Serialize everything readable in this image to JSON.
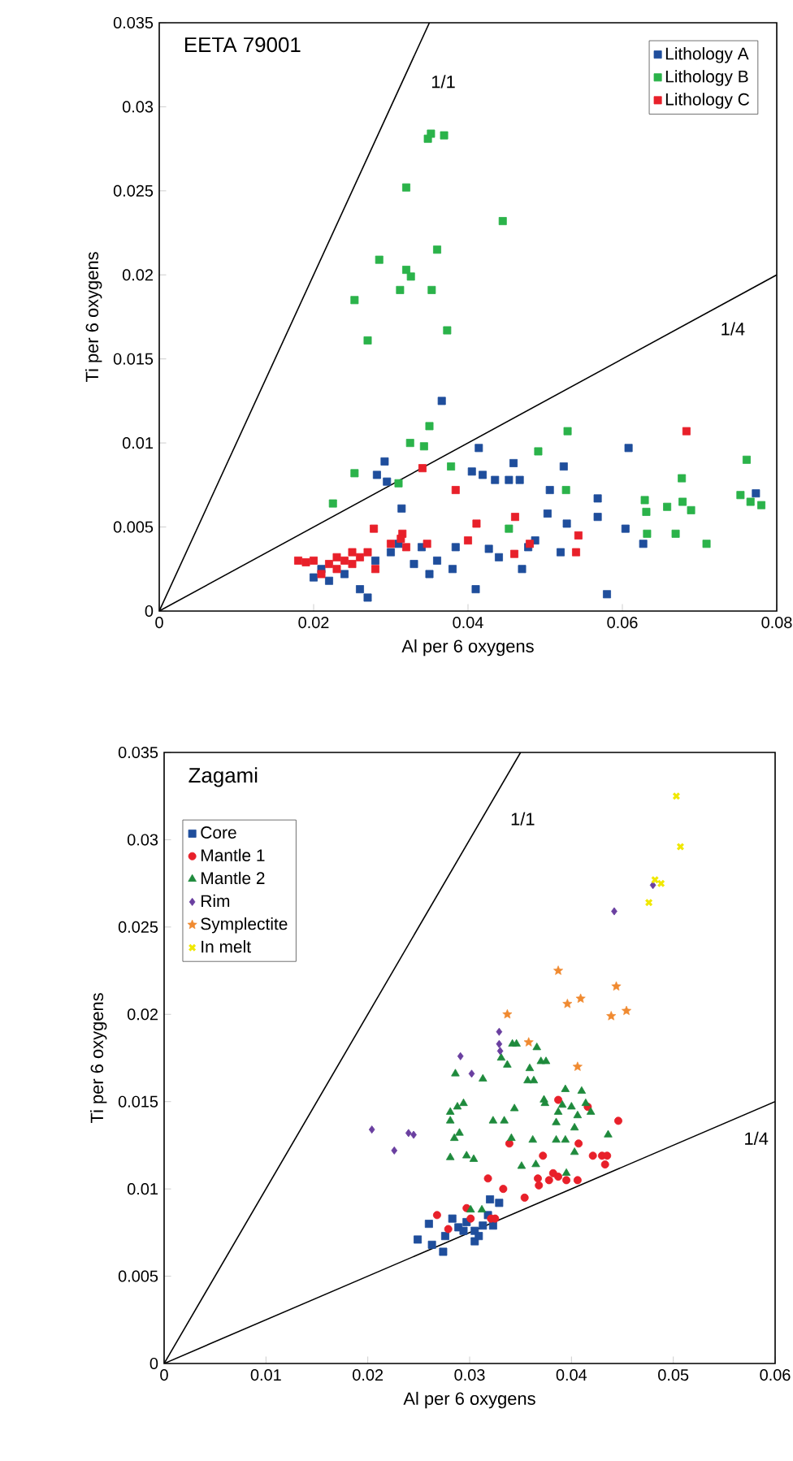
{
  "chart_data": [
    {
      "type": "scatter",
      "title": "EETA 79001",
      "xlabel": "Al per 6 oxygens",
      "ylabel": "Ti per 6 oxygens",
      "xlim": [
        0,
        0.08
      ],
      "ylim": [
        0,
        0.035
      ],
      "xticks": [
        0,
        0.02,
        0.04,
        0.06,
        0.08
      ],
      "yticks": [
        0,
        0.005,
        0.01,
        0.015,
        0.02,
        0.025,
        0.03,
        0.035
      ],
      "legend": "top right",
      "grid": false,
      "annotations": [
        {
          "text": "1/1",
          "x": 0.0315,
          "y": 0.0315
        },
        {
          "text": "1/4",
          "x": 0.0728,
          "y": 0.0182
        }
      ],
      "series": [
        {
          "name": "Lithology A",
          "color": "#1f4e9c",
          "marker": "square",
          "x": [
            0.0366,
            0.0414,
            0.0292,
            0.0282,
            0.0295,
            0.0405,
            0.0419,
            0.0435,
            0.0453,
            0.0467,
            0.0459,
            0.0524,
            0.0506,
            0.0608,
            0.0568,
            0.0568,
            0.0503,
            0.0528,
            0.0604,
            0.0314,
            0.0487,
            0.0773,
            0.0627,
            0.0384,
            0.0427,
            0.0478,
            0.02,
            0.021,
            0.022,
            0.024,
            0.026,
            0.027,
            0.028,
            0.03,
            0.033,
            0.035,
            0.036,
            0.038,
            0.041,
            0.044,
            0.047,
            0.058,
            0.052,
            0.031,
            0.034
          ],
          "values": [
            0.0125,
            0.0097,
            0.0089,
            0.0081,
            0.0077,
            0.0083,
            0.0081,
            0.0078,
            0.0078,
            0.0078,
            0.0088,
            0.0086,
            0.0072,
            0.0097,
            0.0067,
            0.0056,
            0.0058,
            0.0052,
            0.0049,
            0.0061,
            0.0042,
            0.007,
            0.004,
            0.0038,
            0.0037,
            0.0038,
            0.002,
            0.0025,
            0.0018,
            0.0022,
            0.0013,
            0.0008,
            0.003,
            0.0035,
            0.0028,
            0.0022,
            0.003,
            0.0025,
            0.0013,
            0.0032,
            0.0025,
            0.001,
            0.0035,
            0.004,
            0.0038
          ]
        },
        {
          "name": "Lithology B",
          "color": "#2bb34a",
          "marker": "square",
          "x": [
            0.0348,
            0.0352,
            0.0369,
            0.032,
            0.0445,
            0.0285,
            0.032,
            0.0326,
            0.0312,
            0.036,
            0.0353,
            0.0253,
            0.027,
            0.0373,
            0.035,
            0.0325,
            0.0343,
            0.0253,
            0.0225,
            0.031,
            0.0378,
            0.0529,
            0.0491,
            0.0527,
            0.0677,
            0.0761,
            0.0629,
            0.0631,
            0.0658,
            0.0678,
            0.0689,
            0.0753,
            0.0766,
            0.078,
            0.0453,
            0.0632,
            0.0669,
            0.0709
          ],
          "values": [
            0.0281,
            0.0284,
            0.0283,
            0.0252,
            0.0232,
            0.0209,
            0.0203,
            0.0199,
            0.0191,
            0.0215,
            0.0191,
            0.0185,
            0.0161,
            0.0167,
            0.011,
            0.01,
            0.0098,
            0.0082,
            0.0064,
            0.0076,
            0.0086,
            0.0107,
            0.0095,
            0.0072,
            0.0079,
            0.009,
            0.0066,
            0.0059,
            0.0062,
            0.0065,
            0.006,
            0.0069,
            0.0065,
            0.0063,
            0.0049,
            0.0046,
            0.0046,
            0.004
          ]
        },
        {
          "name": "Lithology C",
          "color": "#e8202a",
          "marker": "square",
          "x": [
            0.0341,
            0.0384,
            0.0683,
            0.0278,
            0.0315,
            0.0313,
            0.0347,
            0.0411,
            0.0461,
            0.0543,
            0.018,
            0.02,
            0.021,
            0.022,
            0.023,
            0.024,
            0.025,
            0.026,
            0.027,
            0.028,
            0.03,
            0.032,
            0.04,
            0.046,
            0.048,
            0.054,
            0.025,
            0.023,
            0.019
          ],
          "values": [
            0.0085,
            0.0072,
            0.0107,
            0.0049,
            0.0046,
            0.0043,
            0.004,
            0.0052,
            0.0056,
            0.0045,
            0.003,
            0.003,
            0.0022,
            0.0028,
            0.0025,
            0.003,
            0.0028,
            0.0032,
            0.0035,
            0.0025,
            0.004,
            0.0038,
            0.0042,
            0.0034,
            0.004,
            0.0035,
            0.0035,
            0.0032,
            0.0029
          ]
        },
        {
          "type": "line",
          "color": "#000000",
          "marker": "none",
          "x": [
            0,
            0.035
          ],
          "values": [
            0,
            0.035
          ]
        },
        {
          "type": "line",
          "color": "#000000",
          "marker": "none",
          "x": [
            0,
            0.08
          ],
          "values": [
            0,
            0.02
          ]
        }
      ]
    },
    {
      "type": "scatter",
      "title": "Zagami",
      "xlabel": "Al per 6 oxygens",
      "ylabel": "Ti per 6 oxygens",
      "xlim": [
        0,
        0.06
      ],
      "ylim": [
        0,
        0.035
      ],
      "xticks": [
        0,
        0.01,
        0.02,
        0.03,
        0.04,
        0.05,
        0.06
      ],
      "yticks": [
        0,
        0.005,
        0.01,
        0.015,
        0.02,
        0.025,
        0.03,
        0.035
      ],
      "legend": "top left",
      "grid": false,
      "annotations": [
        {
          "text": "1/1",
          "x": 0.0312,
          "y": 0.0312
        },
        {
          "text": "1/4",
          "x": 0.057,
          "y": 0.01425
        }
      ],
      "series": [
        {
          "name": "Core",
          "color": "#1f4e9c",
          "marker": "square",
          "x": [
            0.0249,
            0.026,
            0.0263,
            0.0274,
            0.0276,
            0.0283,
            0.0289,
            0.0297,
            0.0305,
            0.0305,
            0.0309,
            0.0313,
            0.0318,
            0.032,
            0.0329,
            0.0323,
            0.0294
          ],
          "values": [
            0.0071,
            0.008,
            0.0068,
            0.0064,
            0.0073,
            0.0083,
            0.0078,
            0.0081,
            0.0076,
            0.007,
            0.0073,
            0.0079,
            0.0085,
            0.0094,
            0.0092,
            0.0079,
            0.0076
          ]
        },
        {
          "name": "Mantle 1",
          "color": "#e8202a",
          "marker": "circle",
          "x": [
            0.0268,
            0.0279,
            0.0297,
            0.0301,
            0.0321,
            0.0325,
            0.0318,
            0.0333,
            0.0339,
            0.0354,
            0.0372,
            0.0367,
            0.0368,
            0.0378,
            0.0382,
            0.0387,
            0.0395,
            0.0406,
            0.0407,
            0.0387,
            0.0416,
            0.0421,
            0.043,
            0.0435,
            0.0433,
            0.0446
          ],
          "values": [
            0.0085,
            0.0077,
            0.0089,
            0.0083,
            0.0083,
            0.0083,
            0.0106,
            0.01,
            0.0126,
            0.0095,
            0.0119,
            0.0106,
            0.0102,
            0.0105,
            0.0109,
            0.0107,
            0.0105,
            0.0105,
            0.0126,
            0.0151,
            0.0147,
            0.0119,
            0.0119,
            0.0119,
            0.0114,
            0.0139
          ]
        },
        {
          "name": "Mantle 2",
          "color": "#1e8a3c",
          "marker": "triangle",
          "x": [
            0.0286,
            0.0313,
            0.0281,
            0.0288,
            0.0294,
            0.0281,
            0.029,
            0.0285,
            0.0281,
            0.0297,
            0.0304,
            0.0323,
            0.0334,
            0.0331,
            0.0337,
            0.0342,
            0.0346,
            0.0344,
            0.0341,
            0.0351,
            0.0359,
            0.0357,
            0.0363,
            0.0362,
            0.0365,
            0.0366,
            0.037,
            0.0375,
            0.0373,
            0.0374,
            0.0385,
            0.0387,
            0.0385,
            0.0391,
            0.0394,
            0.0394,
            0.04,
            0.0403,
            0.0406,
            0.0403,
            0.041,
            0.0414,
            0.0419,
            0.0436,
            0.0395,
            0.0301,
            0.0312
          ],
          "values": [
            0.0166,
            0.0163,
            0.0144,
            0.0147,
            0.0149,
            0.0139,
            0.0132,
            0.0129,
            0.0118,
            0.0119,
            0.0117,
            0.0139,
            0.0139,
            0.0175,
            0.0171,
            0.0183,
            0.0183,
            0.0146,
            0.0129,
            0.0113,
            0.0169,
            0.0162,
            0.0162,
            0.0128,
            0.0114,
            0.0181,
            0.0173,
            0.0173,
            0.0151,
            0.0149,
            0.0138,
            0.0144,
            0.0128,
            0.0148,
            0.0128,
            0.0157,
            0.0147,
            0.0135,
            0.0142,
            0.0121,
            0.0156,
            0.0149,
            0.0144,
            0.0131,
            0.0109,
            0.0088,
            0.0088
          ]
        },
        {
          "name": "Rim",
          "color": "#6a3fa0",
          "marker": "diamond",
          "x": [
            0.0204,
            0.0226,
            0.024,
            0.0245,
            0.0291,
            0.0302,
            0.0329,
            0.0329,
            0.033,
            0.0442,
            0.048
          ],
          "values": [
            0.0134,
            0.0122,
            0.0132,
            0.0131,
            0.0176,
            0.0166,
            0.019,
            0.0183,
            0.0179,
            0.0259,
            0.0274
          ]
        },
        {
          "name": "Symplectite",
          "color": "#f08a30",
          "marker": "star",
          "x": [
            0.0387,
            0.0396,
            0.0409,
            0.0444,
            0.0439,
            0.0454,
            0.0337,
            0.0358,
            0.0406
          ],
          "values": [
            0.0225,
            0.0206,
            0.0209,
            0.0216,
            0.0199,
            0.0202,
            0.02,
            0.0184,
            0.017
          ]
        },
        {
          "name": "In melt",
          "color": "#f0e800",
          "marker": "cross",
          "x": [
            0.0503,
            0.0507,
            0.0482,
            0.0488,
            0.0476
          ],
          "values": [
            0.0325,
            0.0296,
            0.0277,
            0.0275,
            0.0264
          ]
        },
        {
          "type": "line",
          "color": "#000000",
          "marker": "none",
          "x": [
            0,
            0.035
          ],
          "values": [
            0,
            0.035
          ]
        },
        {
          "type": "line",
          "color": "#000000",
          "marker": "none",
          "x": [
            0,
            0.06
          ],
          "values": [
            0,
            0.015
          ]
        }
      ]
    }
  ]
}
